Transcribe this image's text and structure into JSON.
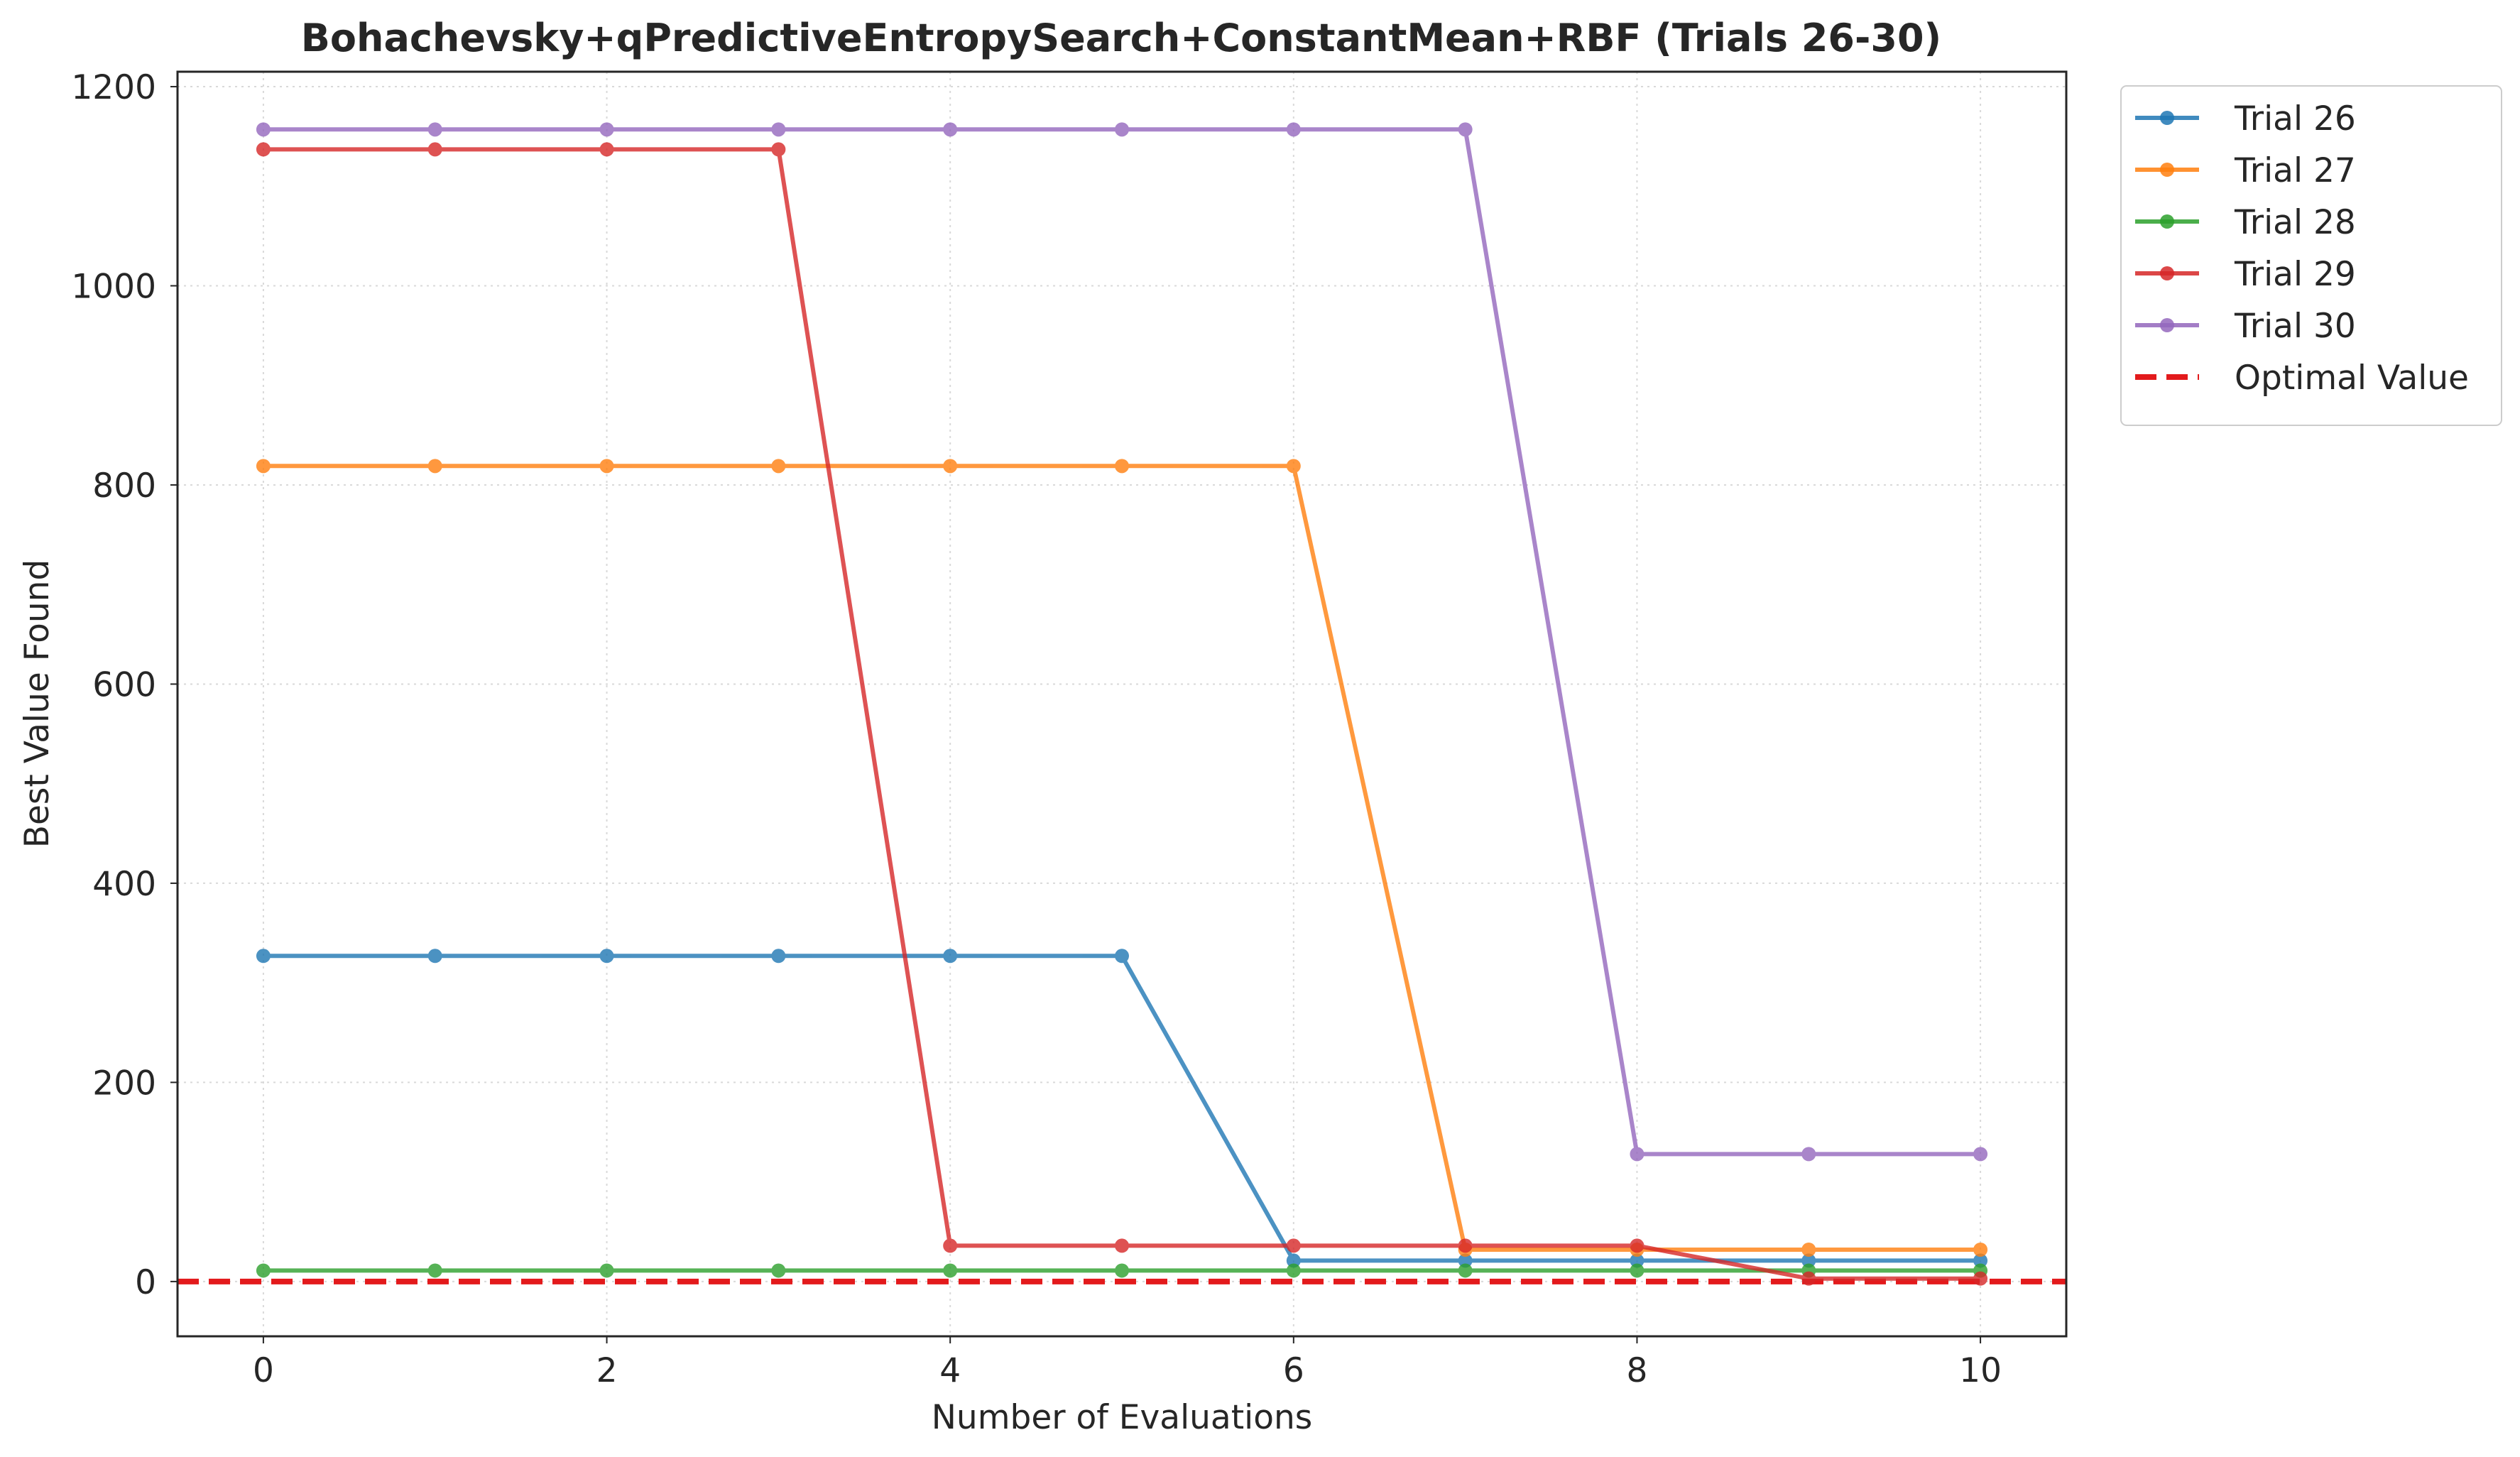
{
  "chart_data": {
    "type": "line",
    "title": "Bohachevsky+qPredictiveEntropySearch+ConstantMean+RBF (Trials 26-30)",
    "xlabel": "Number of Evaluations",
    "ylabel": "Best Value Found",
    "xlim": [
      -0.5,
      10.5
    ],
    "ylim": [
      -55,
      1215
    ],
    "xticks": [
      0,
      2,
      4,
      6,
      8,
      10
    ],
    "xtick_labels": [
      "0",
      "2",
      "4",
      "6",
      "8",
      "10"
    ],
    "yticks": [
      0,
      200,
      400,
      600,
      800,
      1000,
      1200
    ],
    "ytick_labels": [
      "0",
      "200",
      "400",
      "600",
      "800",
      "1000",
      "1200"
    ],
    "grid": true,
    "legend_position": "outside-top-right",
    "x": [
      0,
      1,
      2,
      3,
      4,
      5,
      6,
      7,
      8,
      9,
      10
    ],
    "series": [
      {
        "name": "Trial 26",
        "color": "#1f77b4",
        "values": [
          327,
          327,
          327,
          327,
          327,
          327,
          21,
          21,
          21,
          21,
          21
        ]
      },
      {
        "name": "Trial 27",
        "color": "#ff7f0e",
        "values": [
          819,
          819,
          819,
          819,
          819,
          819,
          819,
          32,
          32,
          32,
          32
        ]
      },
      {
        "name": "Trial 28",
        "color": "#2ca02c",
        "values": [
          11,
          11,
          11,
          11,
          11,
          11,
          11,
          11,
          11,
          11,
          11
        ]
      },
      {
        "name": "Trial 29",
        "color": "#d62728",
        "values": [
          1137,
          1137,
          1137,
          1137,
          36,
          36,
          36,
          36,
          36,
          3,
          3
        ]
      },
      {
        "name": "Trial 30",
        "color": "#9467bd",
        "values": [
          1157,
          1157,
          1157,
          1157,
          1157,
          1157,
          1157,
          1157,
          128,
          128,
          128
        ]
      }
    ],
    "reference_line": {
      "name": "Optimal Value",
      "value": 0,
      "color": "#e31a1c",
      "style": "dashed"
    }
  }
}
